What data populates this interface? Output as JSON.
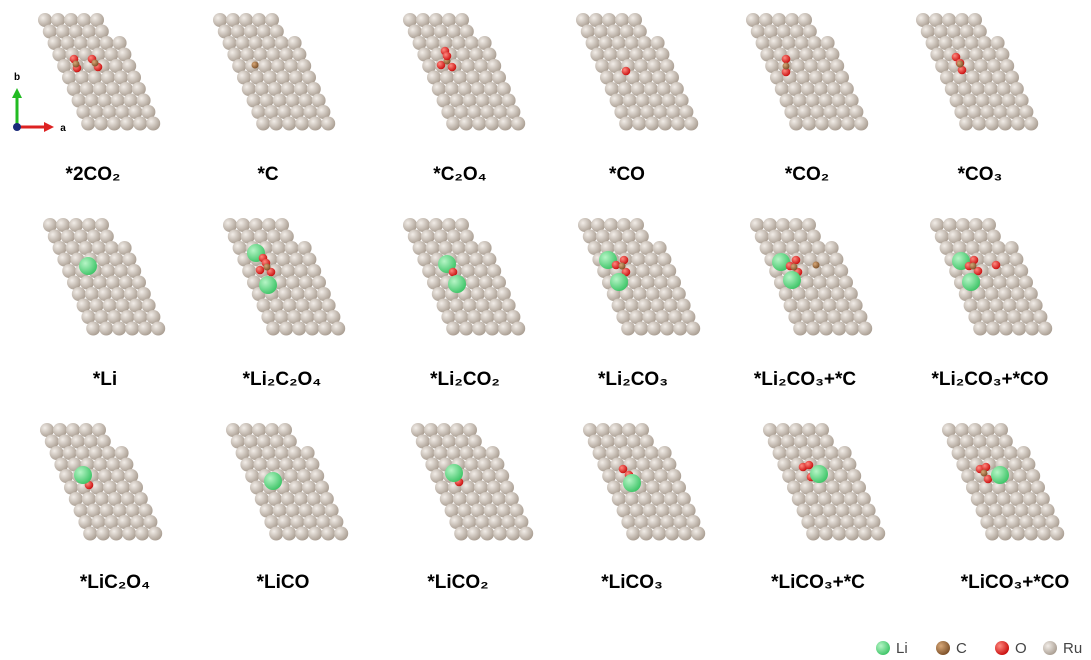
{
  "axes": {
    "b": "b",
    "a": "a"
  },
  "panels": [
    {
      "label": "*2CO₂"
    },
    {
      "label": "*C"
    },
    {
      "label": "*C₂O₄"
    },
    {
      "label": "*CO"
    },
    {
      "label": "*CO₂"
    },
    {
      "label": "*CO₃"
    },
    {
      "label": "*Li"
    },
    {
      "label": "*Li₂C₂O₄"
    },
    {
      "label": "*Li₂CO₂"
    },
    {
      "label": "*Li₂CO₃"
    },
    {
      "label": "*Li₂CO₃+*C"
    },
    {
      "label": "*Li₂CO₃+*CO"
    },
    {
      "label": "*LiC₂O₄"
    },
    {
      "label": "*LiCO"
    },
    {
      "label": "*LiCO₂"
    },
    {
      "label": "*LiCO₃"
    },
    {
      "label": "*LiCO₃+*C"
    },
    {
      "label": "*LiCO₃+*CO"
    }
  ],
  "legend": [
    {
      "name": "Li"
    },
    {
      "name": "C"
    },
    {
      "name": "O"
    },
    {
      "name": "Ru"
    }
  ]
}
